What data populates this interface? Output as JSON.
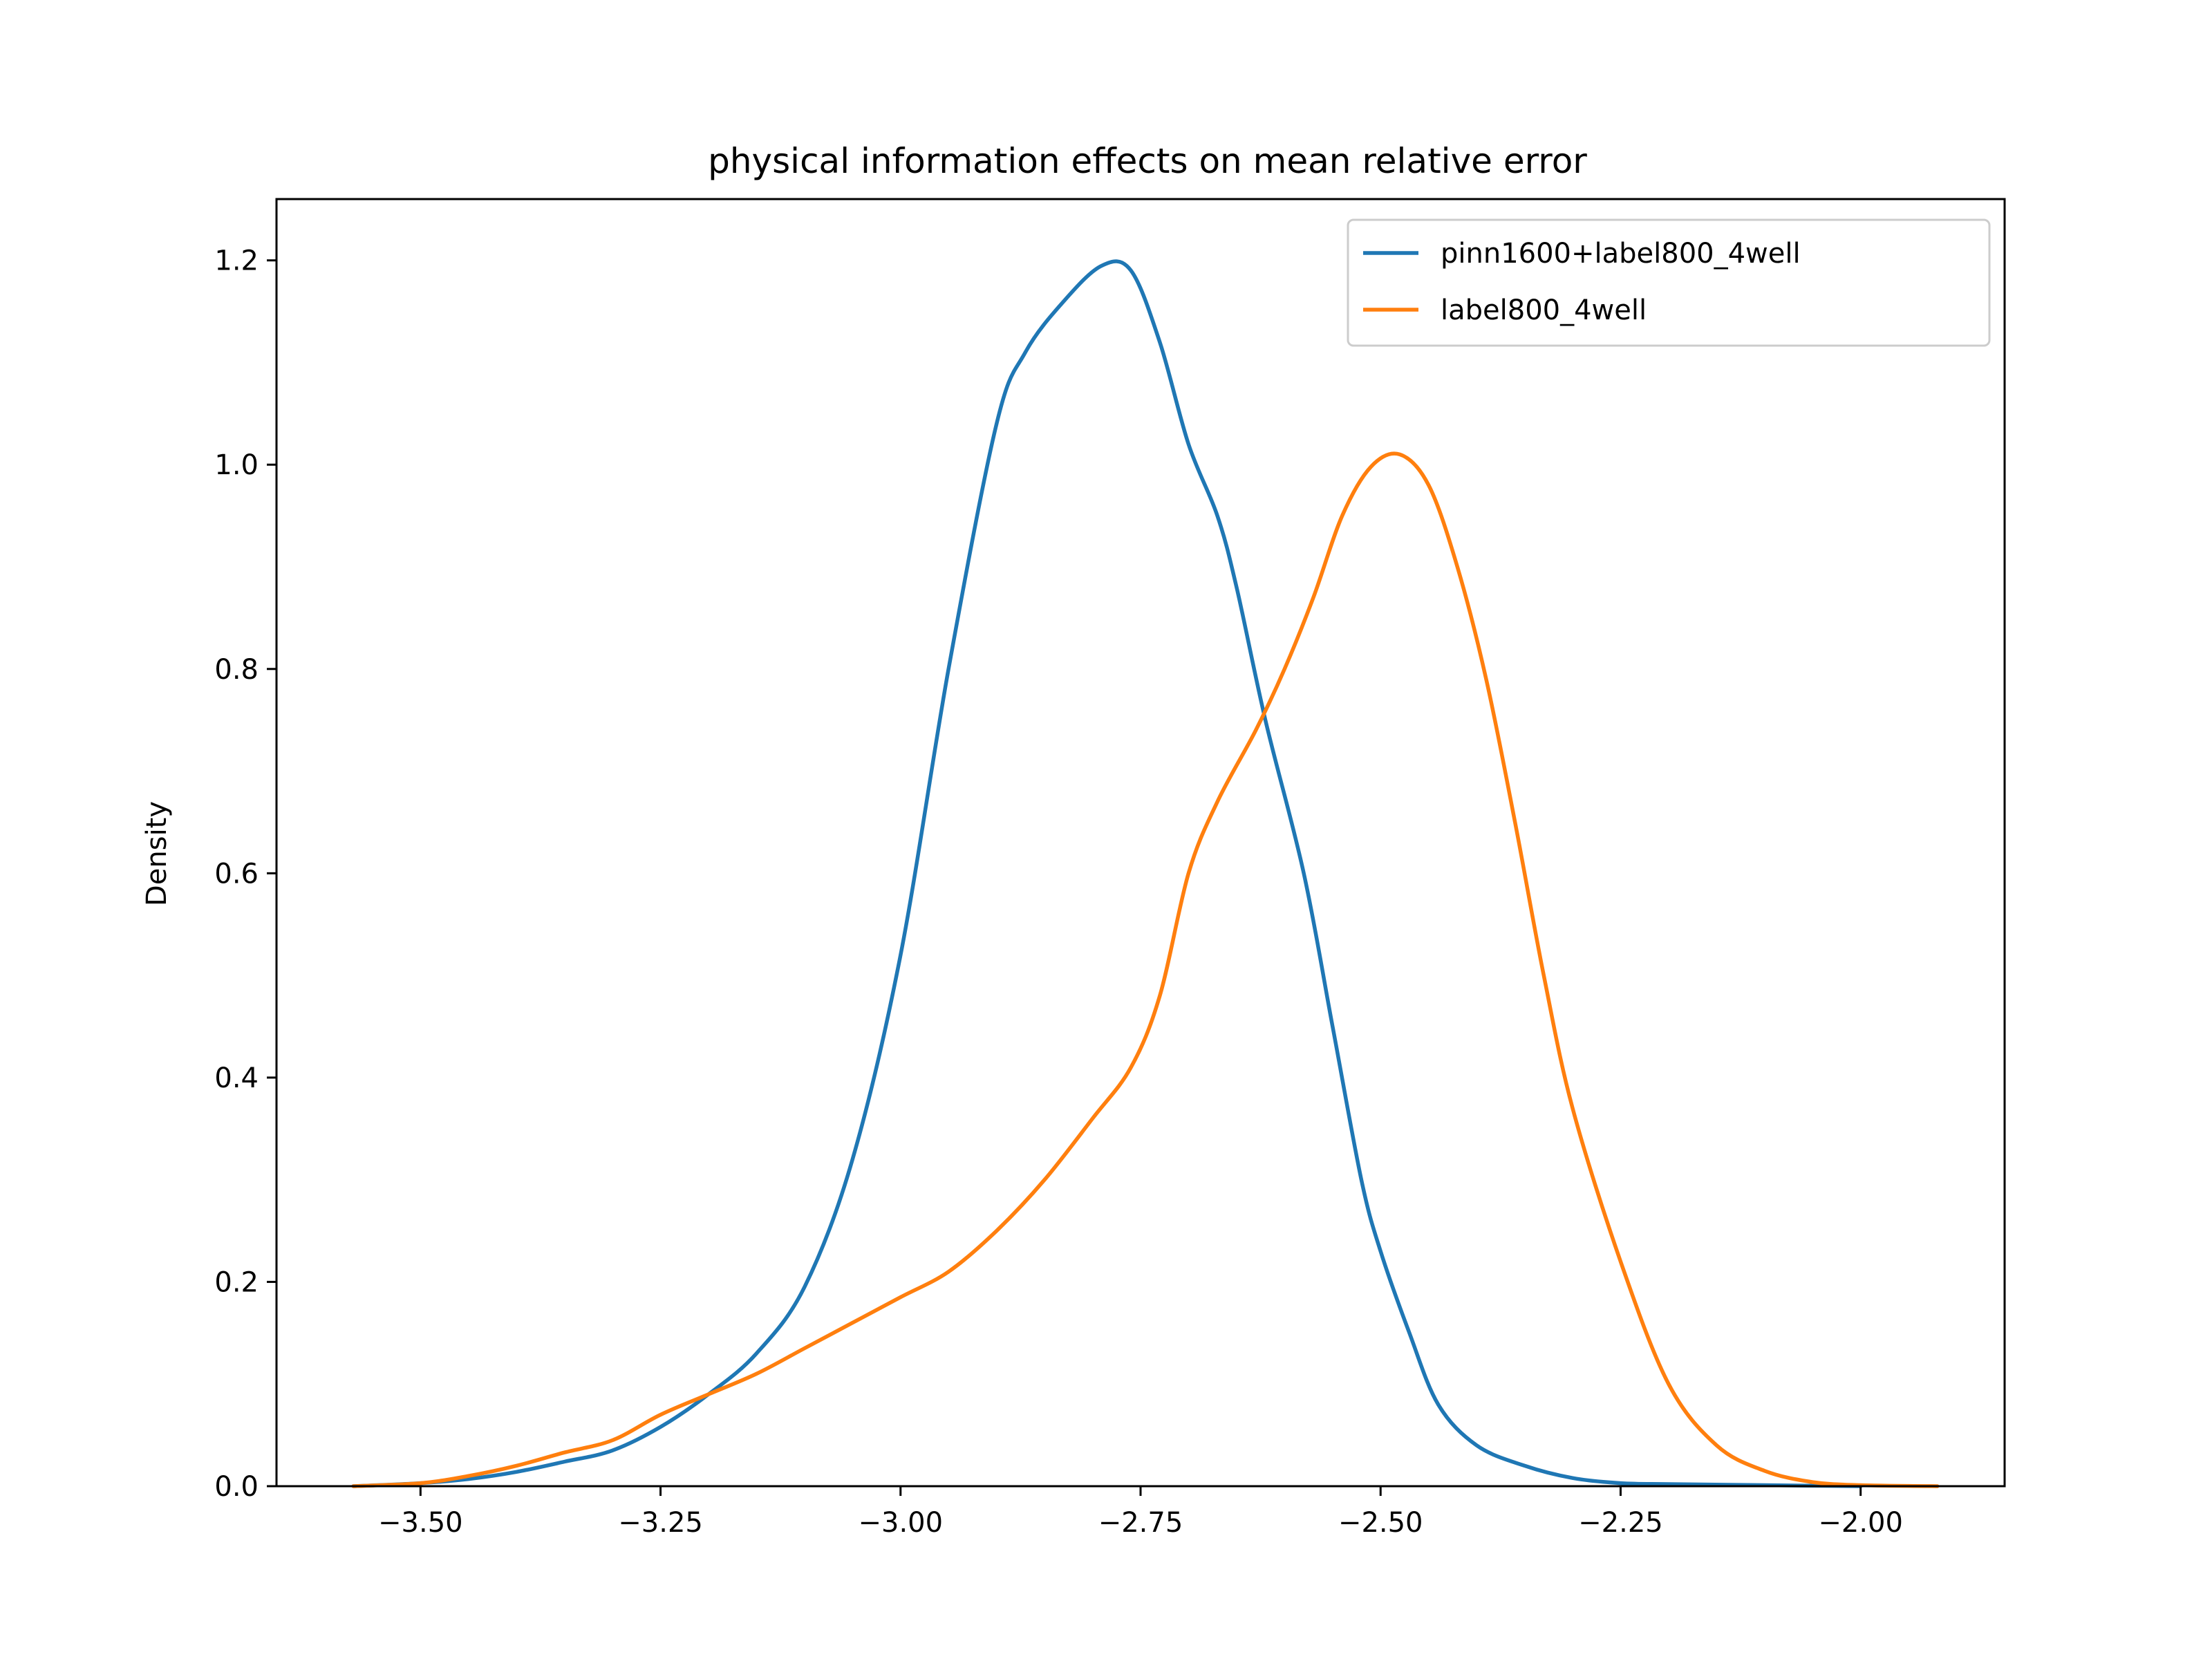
{
  "chart_data": {
    "type": "line",
    "title": "physical information effects on mean relative error",
    "xlabel": "",
    "ylabel": "Density",
    "xlim": [
      -3.65,
      -1.85
    ],
    "ylim": [
      0.0,
      1.26
    ],
    "x_ticks": [
      -3.5,
      -3.25,
      -3.0,
      -2.75,
      -2.5,
      -2.25,
      -2.0
    ],
    "x_tick_labels": [
      "−3.50",
      "−3.25",
      "−3.00",
      "−2.75",
      "−2.50",
      "−2.25",
      "−2.00"
    ],
    "y_ticks": [
      0.0,
      0.2,
      0.4,
      0.6,
      0.8,
      1.0,
      1.2
    ],
    "y_tick_labels": [
      "0.0",
      "0.2",
      "0.4",
      "0.6",
      "0.8",
      "1.0",
      "1.2"
    ],
    "grid": false,
    "legend_position": "top-right",
    "series": [
      {
        "name": "pinn1600+label800_4well",
        "color": "#1f77b4",
        "points": [
          [
            -3.57,
            0.0
          ],
          [
            -3.5,
            0.003
          ],
          [
            -3.45,
            0.007
          ],
          [
            -3.4,
            0.014
          ],
          [
            -3.35,
            0.024
          ],
          [
            -3.3,
            0.035
          ],
          [
            -3.25,
            0.058
          ],
          [
            -3.2,
            0.09
          ],
          [
            -3.15,
            0.13
          ],
          [
            -3.1,
            0.195
          ],
          [
            -3.05,
            0.32
          ],
          [
            -3.0,
            0.52
          ],
          [
            -2.95,
            0.8
          ],
          [
            -2.9,
            1.04
          ],
          [
            -2.87,
            1.11
          ],
          [
            -2.83,
            1.16
          ],
          [
            -2.79,
            1.195
          ],
          [
            -2.76,
            1.19
          ],
          [
            -2.73,
            1.12
          ],
          [
            -2.7,
            1.02
          ],
          [
            -2.67,
            0.95
          ],
          [
            -2.65,
            0.88
          ],
          [
            -2.62,
            0.75
          ],
          [
            -2.58,
            0.6
          ],
          [
            -2.55,
            0.45
          ],
          [
            -2.52,
            0.3
          ],
          [
            -2.5,
            0.23
          ],
          [
            -2.47,
            0.15
          ],
          [
            -2.44,
            0.08
          ],
          [
            -2.4,
            0.04
          ],
          [
            -2.35,
            0.02
          ],
          [
            -2.3,
            0.008
          ],
          [
            -2.25,
            0.003
          ],
          [
            -2.2,
            0.002
          ],
          [
            -2.1,
            0.001
          ],
          [
            -2.0,
            0.0
          ]
        ]
      },
      {
        "name": "label800_4well",
        "color": "#ff7f0e",
        "points": [
          [
            -3.57,
            0.0
          ],
          [
            -3.5,
            0.003
          ],
          [
            -3.45,
            0.01
          ],
          [
            -3.4,
            0.02
          ],
          [
            -3.35,
            0.033
          ],
          [
            -3.3,
            0.045
          ],
          [
            -3.25,
            0.07
          ],
          [
            -3.2,
            0.09
          ],
          [
            -3.15,
            0.11
          ],
          [
            -3.1,
            0.135
          ],
          [
            -3.05,
            0.16
          ],
          [
            -3.0,
            0.185
          ],
          [
            -2.95,
            0.21
          ],
          [
            -2.9,
            0.25
          ],
          [
            -2.85,
            0.3
          ],
          [
            -2.8,
            0.36
          ],
          [
            -2.76,
            0.41
          ],
          [
            -2.73,
            0.48
          ],
          [
            -2.7,
            0.6
          ],
          [
            -2.67,
            0.67
          ],
          [
            -2.63,
            0.74
          ],
          [
            -2.6,
            0.8
          ],
          [
            -2.57,
            0.87
          ],
          [
            -2.54,
            0.95
          ],
          [
            -2.51,
            0.998
          ],
          [
            -2.48,
            1.01
          ],
          [
            -2.45,
            0.98
          ],
          [
            -2.42,
            0.9
          ],
          [
            -2.39,
            0.79
          ],
          [
            -2.36,
            0.65
          ],
          [
            -2.33,
            0.5
          ],
          [
            -2.3,
            0.37
          ],
          [
            -2.25,
            0.22
          ],
          [
            -2.2,
            0.1
          ],
          [
            -2.15,
            0.04
          ],
          [
            -2.1,
            0.015
          ],
          [
            -2.05,
            0.004
          ],
          [
            -2.0,
            0.001
          ],
          [
            -1.92,
            0.0
          ]
        ]
      }
    ]
  }
}
